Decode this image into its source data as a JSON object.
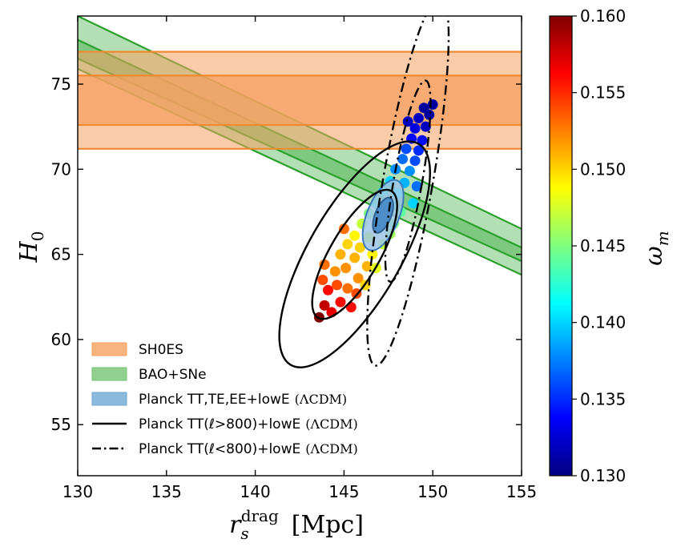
{
  "chart_data": {
    "type": "scatter",
    "xlabel": "r_s^drag  [Mpc]",
    "xlabel_main": "r",
    "xlabel_sub": "s",
    "xlabel_sup": "drag",
    "xlabel_unit": "[Mpc]",
    "ylabel": "H_0",
    "ylabel_main": "H",
    "ylabel_sub": "0",
    "xlim": [
      130,
      155
    ],
    "ylim": [
      52,
      79
    ],
    "xticks": [
      130,
      135,
      140,
      145,
      150,
      155
    ],
    "yticks": [
      55,
      60,
      65,
      70,
      75
    ],
    "colorbar": {
      "label": "ω_m",
      "label_main": "ω",
      "label_sub": "m",
      "range": [
        0.13,
        0.16
      ],
      "ticks": [
        "0.130",
        "0.135",
        "0.140",
        "0.145",
        "0.150",
        "0.155",
        "0.160"
      ],
      "tick_values": [
        0.13,
        0.135,
        0.14,
        0.145,
        0.15,
        0.155,
        0.16
      ],
      "colormap": [
        "#00007f",
        "#0000ff",
        "#007fff",
        "#00ffff",
        "#7fff7f",
        "#ffff00",
        "#ff7f00",
        "#ff0000",
        "#7f0000"
      ]
    },
    "legend_position": "lower-left",
    "legend": [
      {
        "label": "SH0ES",
        "model": "",
        "kind": "band",
        "color": "#f5a060"
      },
      {
        "label": "BAO+SNe",
        "model": "",
        "kind": "band",
        "color": "#74c476"
      },
      {
        "label": "Planck TT,TE,EE+lowE",
        "model": "(ΛCDM)",
        "kind": "band",
        "color": "#6fa8d6"
      },
      {
        "label": "Planck TT(ℓ>800)+lowE",
        "model": "(ΛCDM)",
        "kind": "solid-line",
        "color": "#000000"
      },
      {
        "label": "Planck TT(ℓ<800)+lowE",
        "model": "(ΛCDM)",
        "kind": "dashdot-line",
        "color": "#000000"
      }
    ],
    "bands": {
      "shoes": {
        "outer": [
          71.2,
          76.9
        ],
        "inner": [
          72.6,
          75.5
        ],
        "color": "#f5a060",
        "edge": "#f08a30"
      },
      "bao": {
        "x": [
          130,
          155
        ],
        "outer_top": [
          79.0,
          66.5
        ],
        "outer_bottom": [
          75.9,
          63.8
        ],
        "inner_top": [
          77.6,
          65.4
        ],
        "inner_bottom": [
          76.5,
          64.6
        ],
        "color": "#74c476",
        "edge": "#2ca02c"
      }
    },
    "contours": {
      "planck_full": {
        "center": [
          147.2,
          67.3
        ],
        "sigma2": [
          0.9,
          2.2
        ],
        "sigma1": [
          0.45,
          1.1
        ],
        "angle_deg": 68,
        "color": "#5b9bd5"
      },
      "high_l": {
        "center": [
          145.6,
          65.0
        ],
        "sigma2": [
          2.6,
          7.5
        ],
        "sigma1": [
          1.4,
          4.3
        ],
        "angle_deg": 60,
        "color": "#000000"
      },
      "low_l": {
        "center": [
          148.6,
          69.3
        ],
        "sigma2": [
          1.4,
          11.0
        ],
        "sigma1": [
          0.8,
          6.0
        ],
        "angle_deg": 80,
        "color": "#000000"
      }
    },
    "samples": [
      {
        "x": 143.6,
        "y": 61.3,
        "w": 0.16
      },
      {
        "x": 143.9,
        "y": 62.0,
        "w": 0.158
      },
      {
        "x": 144.3,
        "y": 61.6,
        "w": 0.157
      },
      {
        "x": 144.8,
        "y": 62.2,
        "w": 0.156
      },
      {
        "x": 144.1,
        "y": 62.9,
        "w": 0.156
      },
      {
        "x": 145.4,
        "y": 61.9,
        "w": 0.156
      },
      {
        "x": 143.8,
        "y": 63.5,
        "w": 0.154
      },
      {
        "x": 144.6,
        "y": 63.2,
        "w": 0.154
      },
      {
        "x": 145.2,
        "y": 63.0,
        "w": 0.153
      },
      {
        "x": 145.7,
        "y": 62.7,
        "w": 0.154
      },
      {
        "x": 143.9,
        "y": 64.4,
        "w": 0.153
      },
      {
        "x": 144.5,
        "y": 64.0,
        "w": 0.152
      },
      {
        "x": 145.1,
        "y": 64.2,
        "w": 0.152
      },
      {
        "x": 145.8,
        "y": 63.6,
        "w": 0.152
      },
      {
        "x": 144.8,
        "y": 65.0,
        "w": 0.151
      },
      {
        "x": 145.6,
        "y": 64.8,
        "w": 0.151
      },
      {
        "x": 146.3,
        "y": 64.3,
        "w": 0.151
      },
      {
        "x": 145.2,
        "y": 65.6,
        "w": 0.15
      },
      {
        "x": 145.9,
        "y": 65.4,
        "w": 0.15
      },
      {
        "x": 146.6,
        "y": 65.0,
        "w": 0.149
      },
      {
        "x": 145.6,
        "y": 66.1,
        "w": 0.149
      },
      {
        "x": 146.4,
        "y": 66.0,
        "w": 0.148
      },
      {
        "x": 147.2,
        "y": 65.6,
        "w": 0.147
      },
      {
        "x": 146.0,
        "y": 66.8,
        "w": 0.147
      },
      {
        "x": 146.9,
        "y": 66.5,
        "w": 0.146
      },
      {
        "x": 147.6,
        "y": 66.2,
        "w": 0.146
      },
      {
        "x": 146.4,
        "y": 67.4,
        "w": 0.145
      },
      {
        "x": 147.3,
        "y": 67.2,
        "w": 0.144
      },
      {
        "x": 146.8,
        "y": 68.0,
        "w": 0.143
      },
      {
        "x": 147.7,
        "y": 67.9,
        "w": 0.143
      },
      {
        "x": 148.2,
        "y": 67.5,
        "w": 0.144
      },
      {
        "x": 147.2,
        "y": 68.7,
        "w": 0.142
      },
      {
        "x": 148.0,
        "y": 68.6,
        "w": 0.141
      },
      {
        "x": 147.6,
        "y": 69.3,
        "w": 0.14
      },
      {
        "x": 148.4,
        "y": 69.2,
        "w": 0.139
      },
      {
        "x": 147.9,
        "y": 70.0,
        "w": 0.138
      },
      {
        "x": 148.7,
        "y": 69.9,
        "w": 0.138
      },
      {
        "x": 148.3,
        "y": 70.6,
        "w": 0.137
      },
      {
        "x": 149.0,
        "y": 70.5,
        "w": 0.136
      },
      {
        "x": 148.5,
        "y": 71.2,
        "w": 0.136
      },
      {
        "x": 149.2,
        "y": 71.1,
        "w": 0.135
      },
      {
        "x": 148.8,
        "y": 71.8,
        "w": 0.134
      },
      {
        "x": 149.4,
        "y": 71.7,
        "w": 0.134
      },
      {
        "x": 149.0,
        "y": 72.4,
        "w": 0.133
      },
      {
        "x": 149.6,
        "y": 72.5,
        "w": 0.132
      },
      {
        "x": 149.2,
        "y": 73.0,
        "w": 0.132
      },
      {
        "x": 149.8,
        "y": 73.2,
        "w": 0.131
      },
      {
        "x": 149.5,
        "y": 73.6,
        "w": 0.131
      },
      {
        "x": 150.0,
        "y": 73.8,
        "w": 0.131
      },
      {
        "x": 149.1,
        "y": 69.0,
        "w": 0.137
      },
      {
        "x": 148.9,
        "y": 68.0,
        "w": 0.14
      },
      {
        "x": 146.2,
        "y": 63.2,
        "w": 0.15
      },
      {
        "x": 146.8,
        "y": 64.2,
        "w": 0.148
      },
      {
        "x": 145.0,
        "y": 66.5,
        "w": 0.153
      },
      {
        "x": 147.8,
        "y": 66.8,
        "w": 0.145
      },
      {
        "x": 148.6,
        "y": 72.8,
        "w": 0.132
      }
    ]
  }
}
